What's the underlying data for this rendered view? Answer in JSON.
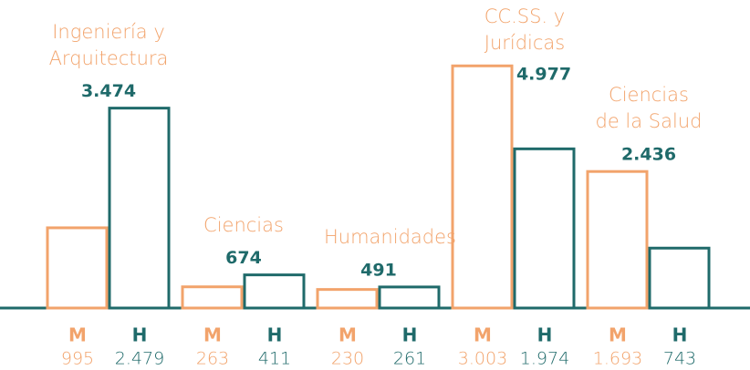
{
  "chart_data": {
    "type": "bar",
    "categories": [
      "Ingeniería y Arquitectura",
      "Ciencias",
      "Humanidades",
      "CC.SS. y Jurídicas",
      "Ciencias de la Salud"
    ],
    "series": [
      {
        "name": "M",
        "color": "#f2a36b",
        "values": [
          995,
          263,
          230,
          3003,
          1693
        ],
        "value_labels": [
          "995",
          "263",
          "230",
          "3.003",
          "1.693"
        ]
      },
      {
        "name": "H",
        "color": "#1f6a6a",
        "values": [
          2479,
          411,
          261,
          1974,
          743
        ],
        "value_labels": [
          "2.479",
          "411",
          "261",
          "1.974",
          "743"
        ]
      }
    ],
    "totals": [
      3474,
      674,
      491,
      4977,
      2436
    ],
    "total_labels": [
      "3.474",
      "674",
      "491",
      "4.977",
      "2.436"
    ],
    "ylim": [
      0,
      3300
    ]
  }
}
